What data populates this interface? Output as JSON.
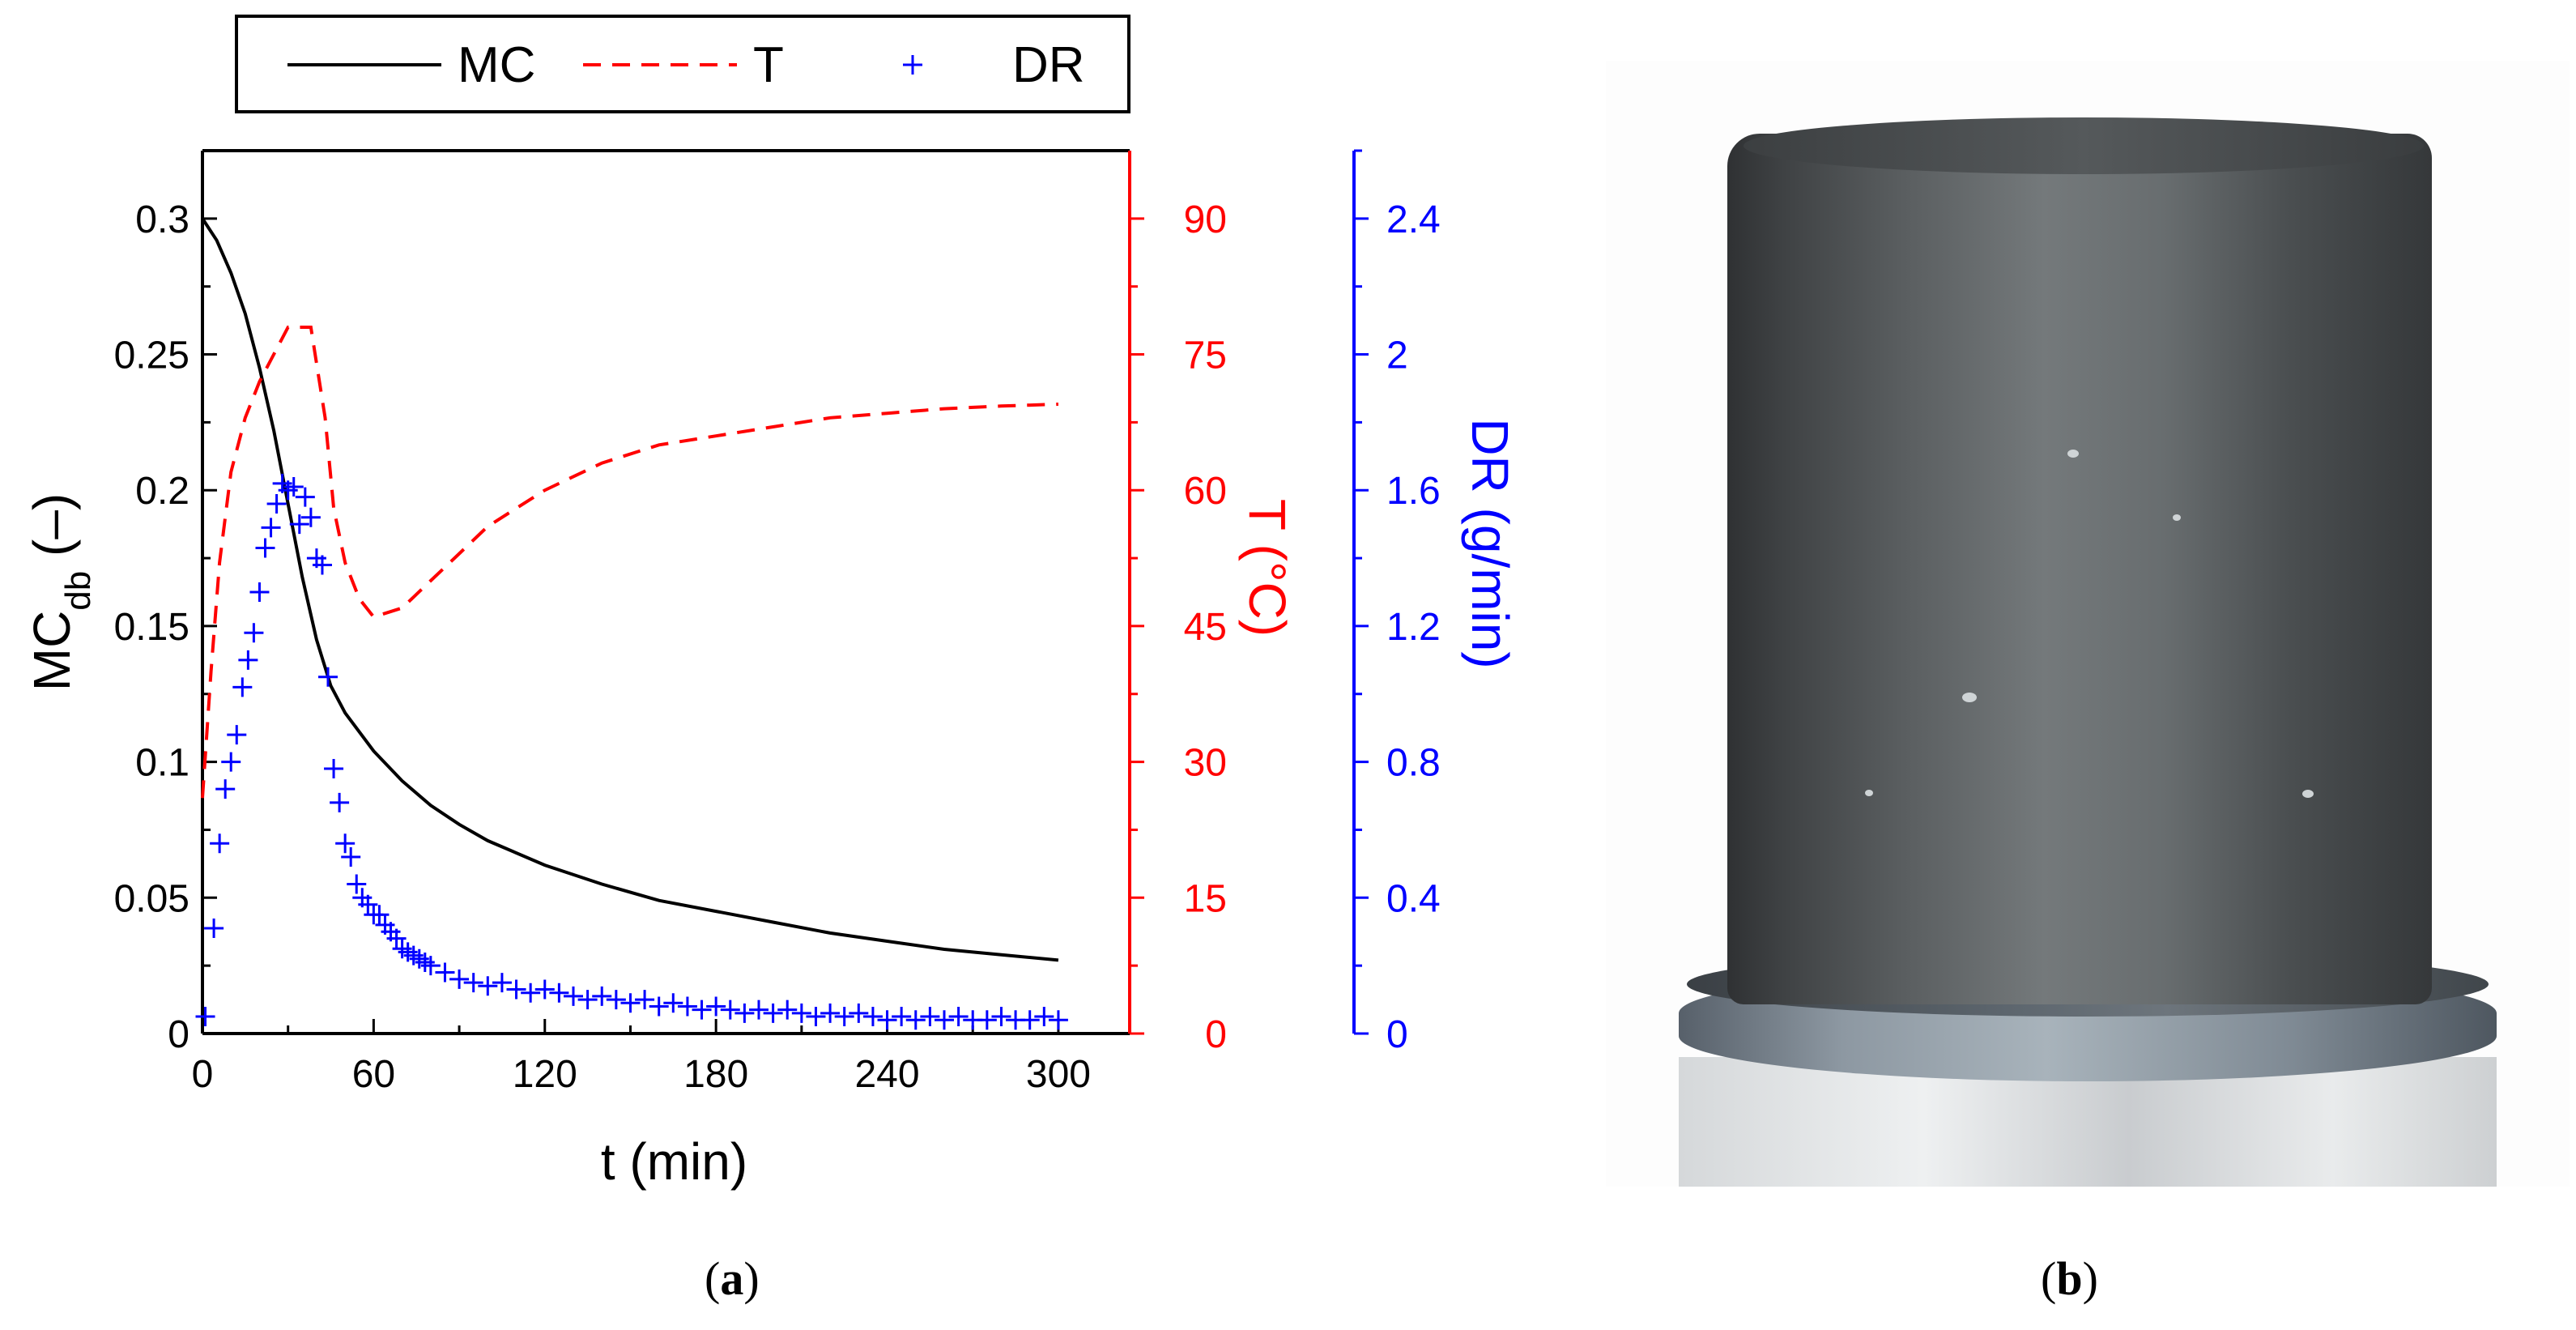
{
  "chart_data": {
    "type": "line",
    "panel_label": "(a)",
    "legend": [
      "MC",
      "T",
      "DR"
    ],
    "legend_placement": "top",
    "grid": false,
    "x": {
      "label": "t (min)",
      "range": [
        0,
        325
      ],
      "ticks": [
        0,
        60,
        120,
        180,
        240,
        300
      ],
      "tick_labels": [
        "0",
        "60",
        "120",
        "180",
        "240",
        "300"
      ]
    },
    "y_left": {
      "label_main": "MC",
      "label_sub": "db",
      "label_tail": " (–)",
      "range": [
        0,
        0.325
      ],
      "ticks": [
        0,
        0.05,
        0.1,
        0.15,
        0.2,
        0.25,
        0.3
      ],
      "tick_labels": [
        "0",
        "0.05",
        "0.1",
        "0.15",
        "0.2",
        "0.25",
        "0.3"
      ]
    },
    "y_right1": {
      "label": "T (°C)",
      "range": [
        0,
        97.5
      ],
      "ticks": [
        0,
        15,
        30,
        45,
        60,
        75,
        90
      ],
      "tick_labels": [
        "0",
        "15",
        "30",
        "45",
        "60",
        "75",
        "90"
      ]
    },
    "y_right2": {
      "label": "DR (g/min)",
      "range": [
        0,
        2.6
      ],
      "ticks": [
        0,
        0.4,
        0.8,
        1.2,
        1.6,
        2.0,
        2.4
      ],
      "tick_labels": [
        "0",
        "0.4",
        "0.8",
        "1.2",
        "1.6",
        "2",
        "2.4"
      ]
    },
    "series": [
      {
        "name": "MC",
        "axis": "y_left",
        "style": "solid",
        "color": "#000000",
        "x": [
          0,
          5,
          10,
          15,
          20,
          25,
          30,
          35,
          40,
          45,
          50,
          60,
          70,
          80,
          90,
          100,
          120,
          140,
          160,
          180,
          200,
          220,
          240,
          260,
          280,
          300
        ],
        "y": [
          0.3,
          0.292,
          0.28,
          0.265,
          0.245,
          0.222,
          0.195,
          0.168,
          0.145,
          0.128,
          0.118,
          0.104,
          0.093,
          0.084,
          0.077,
          0.071,
          0.062,
          0.055,
          0.049,
          0.045,
          0.041,
          0.037,
          0.034,
          0.031,
          0.029,
          0.027
        ]
      },
      {
        "name": "T",
        "axis": "y_right1",
        "style": "dashed",
        "color": "#ff0000",
        "x": [
          0,
          3,
          6,
          10,
          15,
          20,
          25,
          30,
          35,
          38,
          40,
          43,
          46,
          50,
          55,
          60,
          70,
          80,
          90,
          100,
          120,
          140,
          160,
          180,
          200,
          220,
          240,
          260,
          280,
          300
        ],
        "y": [
          26,
          40,
          52,
          62,
          68,
          72,
          75,
          78,
          78,
          78,
          74,
          68,
          58,
          52,
          48,
          46,
          47,
          50,
          53,
          56,
          60,
          63,
          65,
          66,
          67,
          68,
          68.5,
          69,
          69.3,
          69.5
        ]
      },
      {
        "name": "DR",
        "axis": "y_right2",
        "style": "markers",
        "marker": "+",
        "color": "#0000ff",
        "x": [
          1,
          4,
          6,
          8,
          10,
          12,
          14,
          16,
          18,
          20,
          22,
          24,
          26,
          28,
          30,
          32,
          34,
          36,
          38,
          40,
          42,
          44,
          46,
          48,
          50,
          52,
          54,
          56,
          58,
          60,
          62,
          64,
          66,
          68,
          70,
          72,
          74,
          76,
          78,
          80,
          85,
          90,
          95,
          100,
          105,
          110,
          115,
          120,
          125,
          130,
          135,
          140,
          145,
          150,
          155,
          160,
          165,
          170,
          175,
          180,
          185,
          190,
          195,
          200,
          205,
          210,
          215,
          220,
          225,
          230,
          235,
          240,
          245,
          250,
          255,
          260,
          265,
          270,
          275,
          280,
          285,
          290,
          295,
          300
        ],
        "y": [
          0.05,
          0.31,
          0.56,
          0.72,
          0.8,
          0.88,
          1.02,
          1.1,
          1.18,
          1.3,
          1.43,
          1.49,
          1.56,
          1.62,
          1.6,
          1.61,
          1.5,
          1.58,
          1.52,
          1.4,
          1.38,
          1.05,
          0.78,
          0.68,
          0.56,
          0.52,
          0.44,
          0.4,
          0.38,
          0.35,
          0.35,
          0.32,
          0.3,
          0.28,
          0.25,
          0.24,
          0.23,
          0.22,
          0.21,
          0.2,
          0.18,
          0.16,
          0.15,
          0.14,
          0.15,
          0.13,
          0.12,
          0.13,
          0.12,
          0.11,
          0.1,
          0.11,
          0.1,
          0.09,
          0.1,
          0.08,
          0.09,
          0.08,
          0.07,
          0.08,
          0.07,
          0.06,
          0.07,
          0.06,
          0.07,
          0.06,
          0.05,
          0.06,
          0.05,
          0.06,
          0.05,
          0.04,
          0.05,
          0.04,
          0.05,
          0.04,
          0.05,
          0.04,
          0.04,
          0.05,
          0.04,
          0.04,
          0.05,
          0.04
        ]
      }
    ]
  },
  "panel_b_label": "(b)",
  "colors": {
    "mc": "#000000",
    "t": "#ff0000",
    "dr": "#0000ff"
  }
}
